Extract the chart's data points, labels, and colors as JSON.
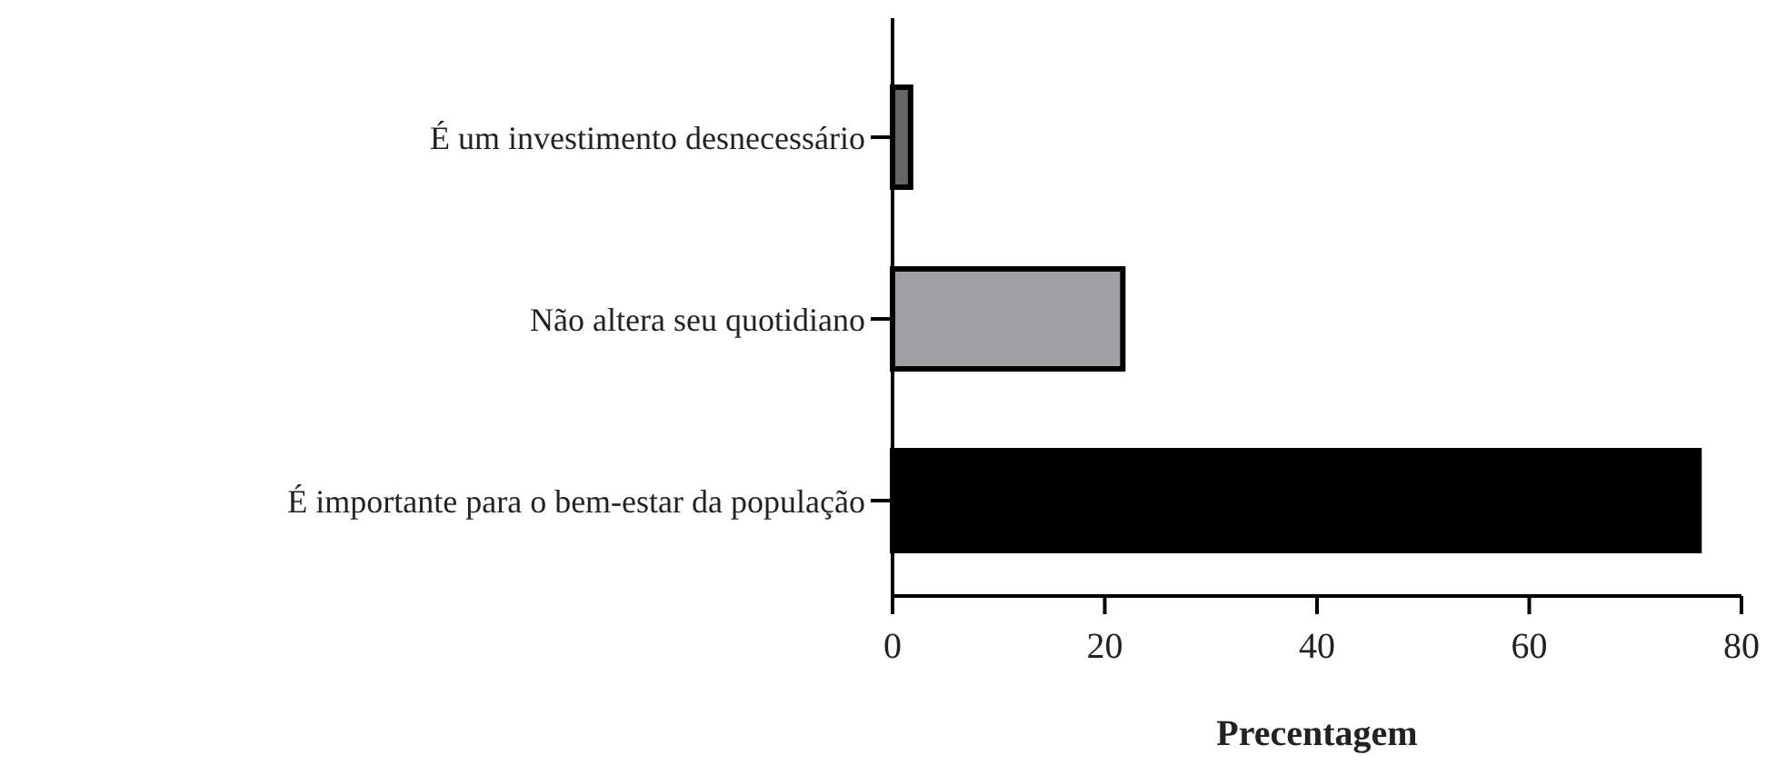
{
  "chart_data": {
    "type": "bar",
    "orientation": "horizontal",
    "categories": [
      "É um investimento desnecessário",
      "Não altera seu quotidiano",
      "É importante para o bem-estar da população"
    ],
    "values": [
      1.7,
      21.7,
      76
    ],
    "colors": [
      "#666666",
      "#a0a0a4",
      "#000000"
    ],
    "xlim": [
      0,
      80
    ],
    "xticks": [
      0,
      20,
      40,
      60,
      80
    ],
    "xlabel": "Precentagem"
  }
}
